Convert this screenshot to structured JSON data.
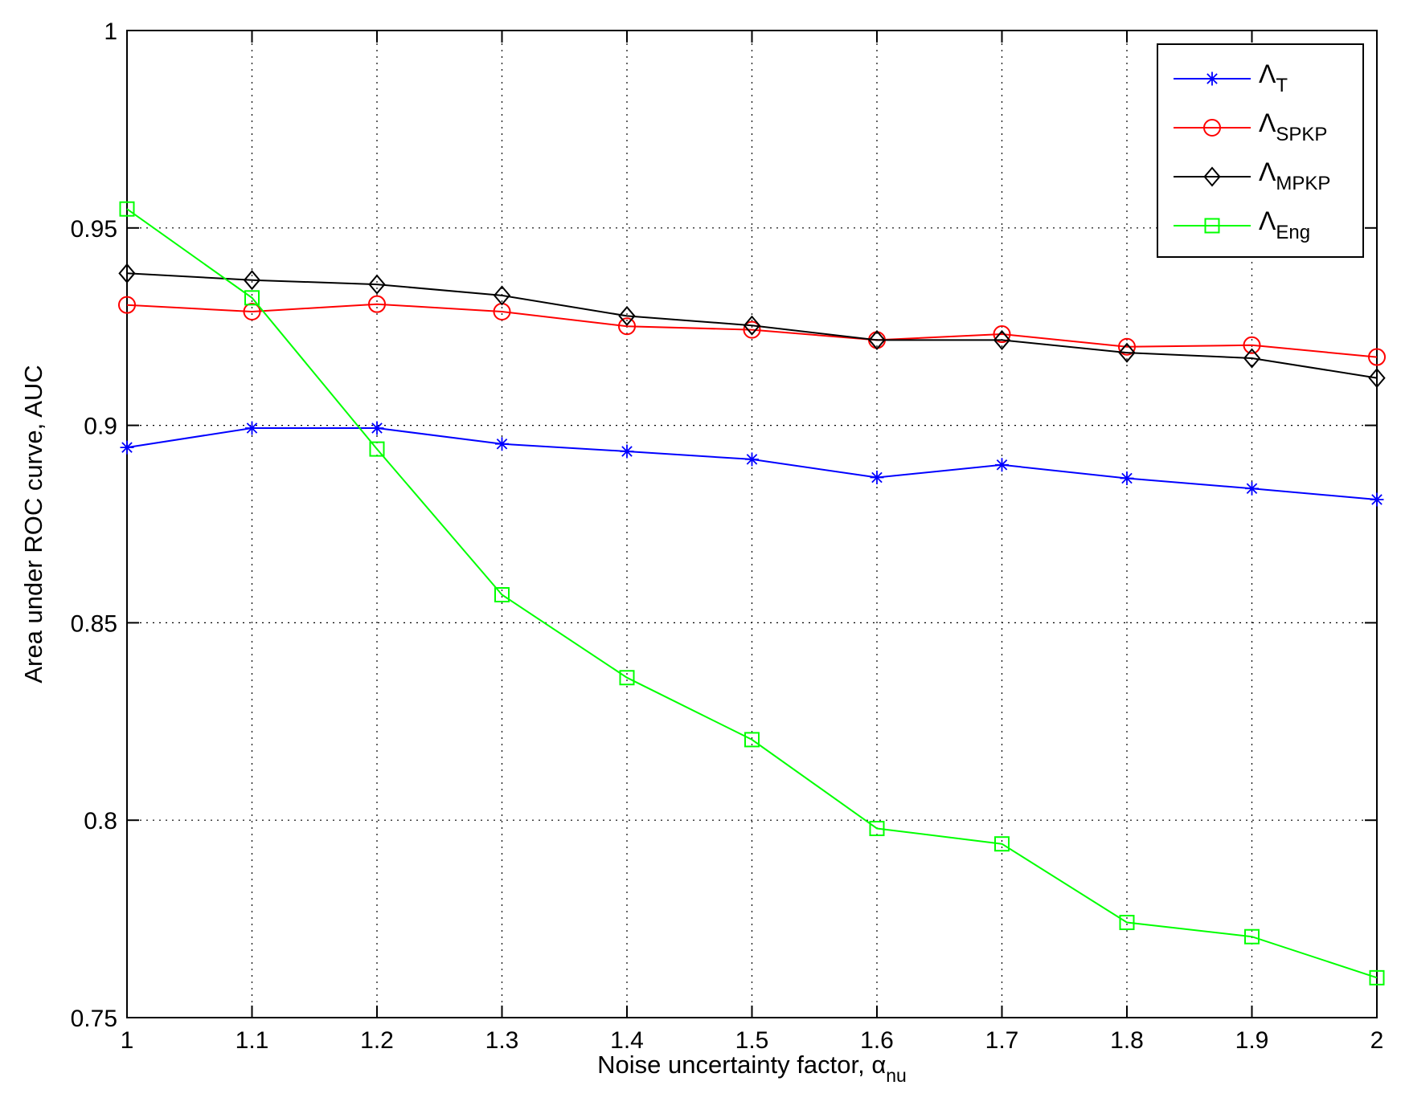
{
  "chart_data": {
    "type": "line",
    "xlabel": "Noise uncertainty factor, α",
    "xlabel_subscript": "nu",
    "ylabel": "Area under ROC curve, AUC",
    "xlim": [
      1,
      2
    ],
    "ylim": [
      0.75,
      1
    ],
    "x_ticks": [
      "1",
      "1.1",
      "1.2",
      "1.3",
      "1.4",
      "1.5",
      "1.6",
      "1.7",
      "1.8",
      "1.9",
      "2"
    ],
    "y_ticks": [
      "0.75",
      "0.8",
      "0.85",
      "0.9",
      "0.95",
      "1"
    ],
    "grid": true,
    "legend_position": "top-right",
    "x": [
      1,
      1.1,
      1.2,
      1.3,
      1.4,
      1.5,
      1.6,
      1.7,
      1.8,
      1.9,
      2
    ],
    "series": [
      {
        "name": "Λ",
        "name_subscript": "T",
        "color": "#0000ff",
        "marker": "asterisk",
        "values": [
          0.8944,
          0.8993,
          0.8993,
          0.8953,
          0.8934,
          0.8914,
          0.8868,
          0.89,
          0.8866,
          0.884,
          0.8812
        ]
      },
      {
        "name": "Λ",
        "name_subscript": "SPKP",
        "color": "#ff0000",
        "marker": "circle",
        "values": [
          0.9305,
          0.9288,
          0.9307,
          0.9288,
          0.9251,
          0.9242,
          0.9216,
          0.9231,
          0.9199,
          0.9203,
          0.9173
        ]
      },
      {
        "name": "Λ",
        "name_subscript": "MPKP",
        "color": "#000000",
        "marker": "diamond",
        "values": [
          0.9385,
          0.9368,
          0.9357,
          0.9329,
          0.9277,
          0.9253,
          0.9216,
          0.9216,
          0.9184,
          0.917,
          0.912
        ]
      },
      {
        "name": "Λ",
        "name_subscript": "Eng",
        "color": "#00ff00",
        "marker": "square",
        "values": [
          0.9548,
          0.9323,
          0.894,
          0.8571,
          0.8361,
          0.8204,
          0.7979,
          0.794,
          0.7741,
          0.7705,
          0.7601
        ]
      }
    ]
  }
}
